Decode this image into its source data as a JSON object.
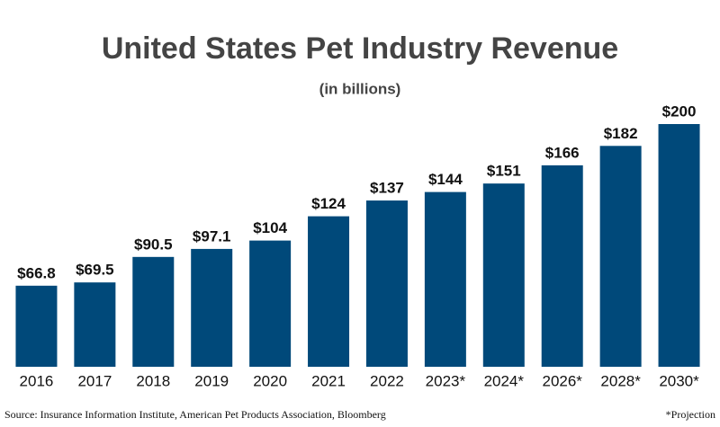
{
  "chart_data": {
    "type": "bar",
    "title": "United States Pet Industry Revenue",
    "subtitle": "(in billions)",
    "categories": [
      "2016",
      "2017",
      "2018",
      "2019",
      "2020",
      "2021",
      "2022",
      "2023*",
      "2024*",
      "2026*",
      "2028*",
      "2030*"
    ],
    "values": [
      66.8,
      69.5,
      90.5,
      97.1,
      104,
      124,
      137,
      144,
      151,
      166,
      182,
      200
    ],
    "value_labels": [
      "$66.8",
      "$69.5",
      "$90.5",
      "$97.1",
      "$104",
      "$124",
      "$137",
      "$144",
      "$151",
      "$166",
      "$182",
      "$200"
    ],
    "color": "#00497a",
    "source": "Source: Insurance Information Institute, American Pet Products Association, Bloomberg",
    "note": "*Projection"
  }
}
